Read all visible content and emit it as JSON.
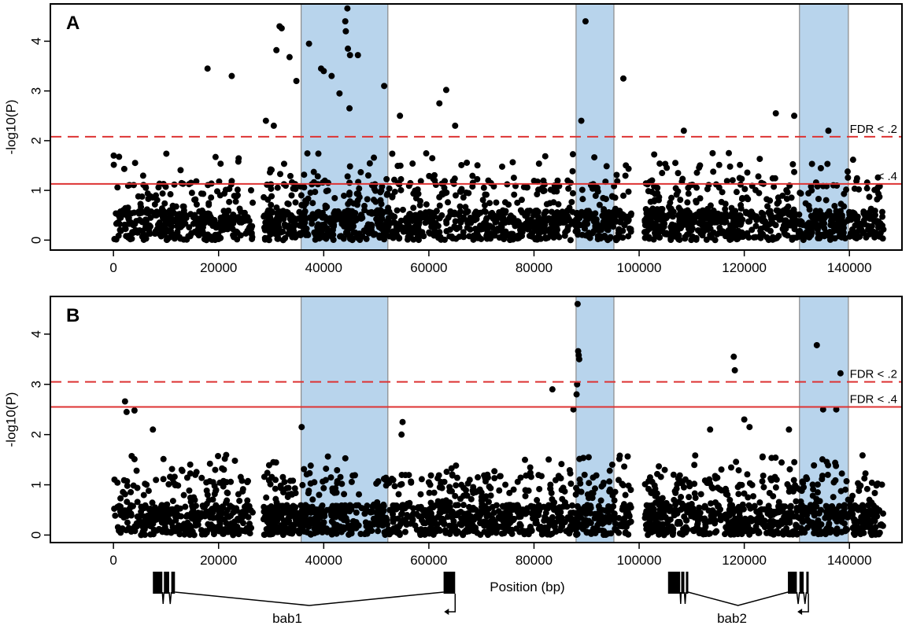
{
  "chart_data": [
    {
      "type": "scatter",
      "panel_label": "A",
      "xlabel": "",
      "ylabel": "-log10(P)",
      "xlim": [
        -12000,
        150000
      ],
      "ylim": [
        -0.2,
        4.75
      ],
      "xticks": [
        0,
        20000,
        40000,
        60000,
        80000,
        100000,
        120000,
        140000
      ],
      "xtick_labels": [
        "0",
        "20000",
        "40000",
        "60000",
        "80000",
        "100000",
        "120000",
        "140000"
      ],
      "yticks": [
        0,
        1,
        2,
        3,
        4
      ],
      "ytick_labels": [
        "0",
        "1",
        "2",
        "3",
        "4"
      ],
      "shaded_regions": [
        {
          "start": 35700,
          "end": 52200,
          "color": "#b8d4ec"
        },
        {
          "start": 88000,
          "end": 95200,
          "color": "#b8d4ec"
        },
        {
          "start": 130500,
          "end": 139800,
          "color": "#b8d4ec"
        }
      ],
      "thresholds": [
        {
          "label": "FDR < .2",
          "y": 2.08,
          "style": "dashed",
          "color": "#dd3333"
        },
        {
          "label": "< .4",
          "y": 1.13,
          "style": "solid",
          "color": "#dd3333"
        }
      ],
      "highlight_points": [
        {
          "x": 17900,
          "y": 3.45
        },
        {
          "x": 22500,
          "y": 3.3
        },
        {
          "x": 31000,
          "y": 3.82
        },
        {
          "x": 31600,
          "y": 4.3
        },
        {
          "x": 32000,
          "y": 4.26
        },
        {
          "x": 33500,
          "y": 3.68
        },
        {
          "x": 34800,
          "y": 3.2
        },
        {
          "x": 37200,
          "y": 3.95
        },
        {
          "x": 39500,
          "y": 3.45
        },
        {
          "x": 40000,
          "y": 3.4
        },
        {
          "x": 41500,
          "y": 3.3
        },
        {
          "x": 43000,
          "y": 2.95
        },
        {
          "x": 44500,
          "y": 4.66
        },
        {
          "x": 44100,
          "y": 4.4
        },
        {
          "x": 44200,
          "y": 4.2
        },
        {
          "x": 44600,
          "y": 3.85
        },
        {
          "x": 45000,
          "y": 3.72
        },
        {
          "x": 44900,
          "y": 2.65
        },
        {
          "x": 46500,
          "y": 3.72
        },
        {
          "x": 51500,
          "y": 3.1
        },
        {
          "x": 63300,
          "y": 3.02
        },
        {
          "x": 62000,
          "y": 2.75
        },
        {
          "x": 54500,
          "y": 2.5
        },
        {
          "x": 89800,
          "y": 4.4
        },
        {
          "x": 97000,
          "y": 3.25
        },
        {
          "x": 89000,
          "y": 2.4
        },
        {
          "x": 126000,
          "y": 2.55
        },
        {
          "x": 129500,
          "y": 2.5
        },
        {
          "x": 108500,
          "y": 2.2
        },
        {
          "x": 136000,
          "y": 2.2
        },
        {
          "x": 29000,
          "y": 2.4
        },
        {
          "x": 30500,
          "y": 2.3
        },
        {
          "x": 65000,
          "y": 2.3
        }
      ],
      "background_points": {
        "count": 2200,
        "x_range": [
          0,
          146500
        ],
        "description_values": "dense low -log10(P) values mostly between 0 and 1.6"
      }
    },
    {
      "type": "scatter",
      "panel_label": "B",
      "xlabel": "Position (bp)",
      "ylabel": "-log10(P)",
      "xlim": [
        -12000,
        150000
      ],
      "ylim": [
        -0.15,
        4.75
      ],
      "xticks": [
        0,
        20000,
        40000,
        60000,
        80000,
        100000,
        120000,
        140000
      ],
      "xtick_labels": [
        "0",
        "20000",
        "40000",
        "60000",
        "80000",
        "100000",
        "120000",
        "140000"
      ],
      "yticks": [
        0,
        1,
        2,
        3,
        4
      ],
      "ytick_labels": [
        "0",
        "1",
        "2",
        "3",
        "4"
      ],
      "shaded_regions": [
        {
          "start": 35700,
          "end": 52200,
          "color": "#b8d4ec"
        },
        {
          "start": 88000,
          "end": 95200,
          "color": "#b8d4ec"
        },
        {
          "start": 130500,
          "end": 139800,
          "color": "#b8d4ec"
        }
      ],
      "thresholds": [
        {
          "label": "FDR < .2",
          "y": 3.05,
          "style": "dashed",
          "color": "#dd3333"
        },
        {
          "label": "FDR < .4",
          "y": 2.55,
          "style": "solid",
          "color": "#dd3333"
        }
      ],
      "highlight_points": [
        {
          "x": 88300,
          "y": 4.6
        },
        {
          "x": 88400,
          "y": 3.66
        },
        {
          "x": 88500,
          "y": 3.58
        },
        {
          "x": 88600,
          "y": 3.5
        },
        {
          "x": 88200,
          "y": 3.0
        },
        {
          "x": 88100,
          "y": 2.8
        },
        {
          "x": 87500,
          "y": 2.5
        },
        {
          "x": 83500,
          "y": 2.9
        },
        {
          "x": 118000,
          "y": 3.55
        },
        {
          "x": 118200,
          "y": 3.28
        },
        {
          "x": 133800,
          "y": 3.78
        },
        {
          "x": 138300,
          "y": 3.22
        },
        {
          "x": 2200,
          "y": 2.66
        },
        {
          "x": 2500,
          "y": 2.45
        },
        {
          "x": 4000,
          "y": 2.48
        },
        {
          "x": 35800,
          "y": 2.15
        },
        {
          "x": 55000,
          "y": 2.25
        },
        {
          "x": 54800,
          "y": 2.0
        },
        {
          "x": 135000,
          "y": 2.5
        },
        {
          "x": 137500,
          "y": 2.5
        },
        {
          "x": 120000,
          "y": 2.3
        },
        {
          "x": 121000,
          "y": 2.15
        },
        {
          "x": 113500,
          "y": 2.1
        },
        {
          "x": 128500,
          "y": 2.1
        },
        {
          "x": 7500,
          "y": 2.1
        }
      ],
      "background_points": {
        "count": 2200,
        "x_range": [
          0,
          146500
        ],
        "description_values": "dense low -log10(P) values mostly between 0 and 1.5"
      }
    }
  ],
  "genes": [
    {
      "name": "bab1",
      "exons": [
        [
          7500,
          9300
        ],
        [
          9600,
          10600
        ],
        [
          11000,
          11700
        ],
        [
          62800,
          65000
        ]
      ],
      "intron_apex": [
        34000,
        8
      ]
    },
    {
      "name": "bab2",
      "exons": [
        [
          105500,
          107800
        ],
        [
          108000,
          108600
        ],
        [
          108900,
          109300
        ],
        [
          128300,
          130000
        ],
        [
          130500,
          131300
        ],
        [
          131800,
          132200
        ]
      ],
      "intron_apex": [
        120000,
        8
      ]
    }
  ]
}
